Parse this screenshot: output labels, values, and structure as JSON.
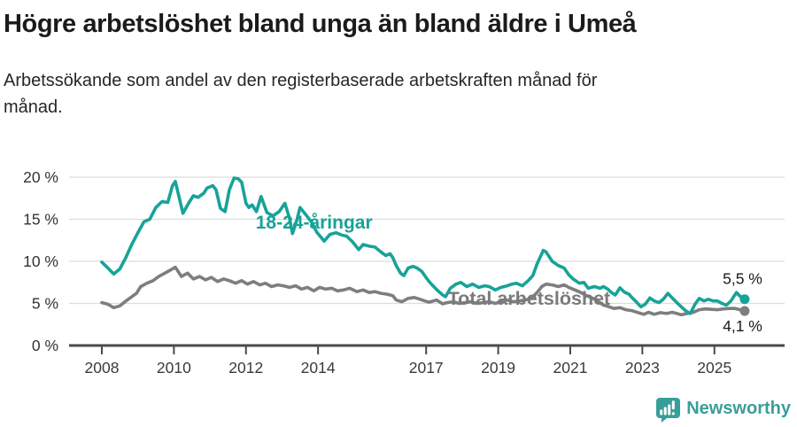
{
  "header": {
    "title": "Högre arbetslöshet bland unga än bland äldre i Umeå",
    "subtitle": "Arbetssökande som andel av den registerbaserade arbetskraften månad för månad."
  },
  "footer": {
    "brand": "Newsworthy"
  },
  "colors": {
    "youth_line": "#17a398",
    "total_line": "#7e7e7e",
    "grid": "#dcdcdc",
    "axis": "#4a4a4a",
    "brand_teal": "#3a9e98"
  },
  "chart_data": {
    "type": "line",
    "title": "Högre arbetslöshet bland unga än bland äldre i Umeå",
    "subtitle": "Arbetssökande som andel av den registerbaserade arbetskraften månad för månad.",
    "x_axis": {
      "unit": "year",
      "range": [
        2008,
        2025.84
      ],
      "ticks": [
        {
          "v": 2008,
          "label": "2008"
        },
        {
          "v": 2010,
          "label": "2010"
        },
        {
          "v": 2012,
          "label": "2012"
        },
        {
          "v": 2014,
          "label": "2014"
        },
        {
          "v": 2017,
          "label": "2017"
        },
        {
          "v": 2019,
          "label": "2019"
        },
        {
          "v": 2021,
          "label": "2021"
        },
        {
          "v": 2023,
          "label": "2023"
        },
        {
          "v": 2025,
          "label": "2025"
        }
      ]
    },
    "y_axis": {
      "unit": "%",
      "range": [
        0,
        21
      ],
      "grid": true,
      "ticks": [
        {
          "v": 20,
          "label": "20 %"
        },
        {
          "v": 15,
          "label": "15 %"
        },
        {
          "v": 10,
          "label": "10 %"
        },
        {
          "v": 5,
          "label": "5 %"
        },
        {
          "v": 0,
          "label": "0 %"
        }
      ]
    },
    "series": [
      {
        "id": "total",
        "name": "Total arbetslöshet",
        "color": "#7e7e7e",
        "end_label": "4,1 %",
        "points": [
          [
            2008.0,
            5.1
          ],
          [
            2008.17,
            4.9
          ],
          [
            2008.33,
            4.5
          ],
          [
            2008.5,
            4.7
          ],
          [
            2008.67,
            5.3
          ],
          [
            2008.83,
            5.8
          ],
          [
            2008.96,
            6.2
          ],
          [
            2009.08,
            7.0
          ],
          [
            2009.25,
            7.4
          ],
          [
            2009.42,
            7.7
          ],
          [
            2009.58,
            8.2
          ],
          [
            2009.75,
            8.6
          ],
          [
            2009.92,
            9.0
          ],
          [
            2010.04,
            9.3
          ],
          [
            2010.21,
            8.2
          ],
          [
            2010.38,
            8.6
          ],
          [
            2010.54,
            7.9
          ],
          [
            2010.71,
            8.2
          ],
          [
            2010.88,
            7.8
          ],
          [
            2011.04,
            8.1
          ],
          [
            2011.21,
            7.6
          ],
          [
            2011.38,
            7.9
          ],
          [
            2011.54,
            7.7
          ],
          [
            2011.71,
            7.4
          ],
          [
            2011.88,
            7.7
          ],
          [
            2012.04,
            7.3
          ],
          [
            2012.21,
            7.6
          ],
          [
            2012.38,
            7.2
          ],
          [
            2012.54,
            7.4
          ],
          [
            2012.71,
            7.0
          ],
          [
            2012.88,
            7.2
          ],
          [
            2013.04,
            7.1
          ],
          [
            2013.21,
            6.9
          ],
          [
            2013.38,
            7.1
          ],
          [
            2013.54,
            6.7
          ],
          [
            2013.71,
            6.9
          ],
          [
            2013.88,
            6.5
          ],
          [
            2014.04,
            6.9
          ],
          [
            2014.21,
            6.7
          ],
          [
            2014.38,
            6.8
          ],
          [
            2014.54,
            6.5
          ],
          [
            2014.71,
            6.6
          ],
          [
            2014.88,
            6.8
          ],
          [
            2015.08,
            6.4
          ],
          [
            2015.25,
            6.6
          ],
          [
            2015.42,
            6.3
          ],
          [
            2015.58,
            6.4
          ],
          [
            2015.75,
            6.2
          ],
          [
            2015.92,
            6.1
          ],
          [
            2016.08,
            5.9
          ],
          [
            2016.17,
            5.4
          ],
          [
            2016.33,
            5.2
          ],
          [
            2016.5,
            5.6
          ],
          [
            2016.67,
            5.7
          ],
          [
            2016.83,
            5.5
          ],
          [
            2016.96,
            5.3
          ],
          [
            2017.08,
            5.15
          ],
          [
            2017.29,
            5.4
          ],
          [
            2017.46,
            4.95
          ],
          [
            2017.58,
            5.1
          ],
          [
            2017.75,
            5.2
          ],
          [
            2017.92,
            5.0
          ],
          [
            2018.08,
            5.1
          ],
          [
            2018.25,
            5.2
          ],
          [
            2018.42,
            5.0
          ],
          [
            2018.58,
            5.1
          ],
          [
            2018.75,
            5.2
          ],
          [
            2018.92,
            5.0
          ],
          [
            2019.08,
            5.2
          ],
          [
            2019.25,
            5.4
          ],
          [
            2019.42,
            5.2
          ],
          [
            2019.58,
            5.3
          ],
          [
            2019.75,
            5.4
          ],
          [
            2019.92,
            5.6
          ],
          [
            2020.08,
            6.3
          ],
          [
            2020.21,
            7.0
          ],
          [
            2020.33,
            7.3
          ],
          [
            2020.5,
            7.2
          ],
          [
            2020.67,
            7.0
          ],
          [
            2020.83,
            7.2
          ],
          [
            2020.96,
            6.9
          ],
          [
            2021.13,
            6.6
          ],
          [
            2021.29,
            6.3
          ],
          [
            2021.46,
            5.9
          ],
          [
            2021.63,
            5.6
          ],
          [
            2021.79,
            5.2
          ],
          [
            2021.92,
            4.8
          ],
          [
            2022.08,
            4.6
          ],
          [
            2022.21,
            4.4
          ],
          [
            2022.38,
            4.5
          ],
          [
            2022.54,
            4.25
          ],
          [
            2022.71,
            4.15
          ],
          [
            2022.88,
            3.9
          ],
          [
            2023.04,
            3.7
          ],
          [
            2023.17,
            3.95
          ],
          [
            2023.33,
            3.7
          ],
          [
            2023.5,
            3.9
          ],
          [
            2023.67,
            3.8
          ],
          [
            2023.83,
            3.95
          ],
          [
            2023.96,
            3.8
          ],
          [
            2024.08,
            3.65
          ],
          [
            2024.25,
            3.8
          ],
          [
            2024.42,
            3.95
          ],
          [
            2024.58,
            4.25
          ],
          [
            2024.75,
            4.35
          ],
          [
            2024.92,
            4.3
          ],
          [
            2025.08,
            4.25
          ],
          [
            2025.25,
            4.35
          ],
          [
            2025.42,
            4.4
          ],
          [
            2025.58,
            4.4
          ],
          [
            2025.71,
            4.25
          ],
          [
            2025.84,
            4.1
          ]
        ]
      },
      {
        "id": "youth",
        "name": "18-24-åringar",
        "color": "#17a398",
        "end_label": "5,5 %",
        "points": [
          [
            2008.0,
            9.9
          ],
          [
            2008.17,
            9.2
          ],
          [
            2008.33,
            8.5
          ],
          [
            2008.5,
            9.1
          ],
          [
            2008.67,
            10.5
          ],
          [
            2008.83,
            12.0
          ],
          [
            2009.0,
            13.4
          ],
          [
            2009.17,
            14.7
          ],
          [
            2009.33,
            15.0
          ],
          [
            2009.5,
            16.4
          ],
          [
            2009.67,
            17.1
          ],
          [
            2009.83,
            17.0
          ],
          [
            2009.96,
            19.0
          ],
          [
            2010.04,
            19.5
          ],
          [
            2010.25,
            15.7
          ],
          [
            2010.42,
            17.0
          ],
          [
            2010.54,
            17.8
          ],
          [
            2010.67,
            17.6
          ],
          [
            2010.83,
            18.1
          ],
          [
            2010.92,
            18.7
          ],
          [
            2011.08,
            19.0
          ],
          [
            2011.17,
            18.5
          ],
          [
            2011.29,
            16.3
          ],
          [
            2011.42,
            15.9
          ],
          [
            2011.54,
            18.5
          ],
          [
            2011.67,
            19.9
          ],
          [
            2011.79,
            19.8
          ],
          [
            2011.88,
            19.4
          ],
          [
            2012.0,
            16.9
          ],
          [
            2012.08,
            16.4
          ],
          [
            2012.17,
            16.7
          ],
          [
            2012.29,
            15.9
          ],
          [
            2012.42,
            17.7
          ],
          [
            2012.58,
            15.8
          ],
          [
            2012.75,
            15.4
          ],
          [
            2012.92,
            15.9
          ],
          [
            2013.08,
            16.9
          ],
          [
            2013.21,
            15.1
          ],
          [
            2013.29,
            13.3
          ],
          [
            2013.42,
            15.0
          ],
          [
            2013.5,
            16.4
          ],
          [
            2013.67,
            15.5
          ],
          [
            2013.83,
            14.6
          ],
          [
            2013.96,
            13.5
          ],
          [
            2014.17,
            12.4
          ],
          [
            2014.33,
            13.2
          ],
          [
            2014.5,
            13.4
          ],
          [
            2014.67,
            13.1
          ],
          [
            2014.79,
            13.0
          ],
          [
            2014.96,
            12.3
          ],
          [
            2015.13,
            11.4
          ],
          [
            2015.25,
            12.0
          ],
          [
            2015.42,
            11.8
          ],
          [
            2015.58,
            11.7
          ],
          [
            2015.75,
            11.1
          ],
          [
            2015.88,
            10.7
          ],
          [
            2016.0,
            10.9
          ],
          [
            2016.08,
            10.4
          ],
          [
            2016.17,
            9.5
          ],
          [
            2016.29,
            8.6
          ],
          [
            2016.38,
            8.3
          ],
          [
            2016.5,
            9.2
          ],
          [
            2016.63,
            9.4
          ],
          [
            2016.75,
            9.2
          ],
          [
            2016.88,
            8.8
          ],
          [
            2016.96,
            8.3
          ],
          [
            2017.08,
            7.6
          ],
          [
            2017.21,
            7.0
          ],
          [
            2017.33,
            6.5
          ],
          [
            2017.46,
            6.0
          ],
          [
            2017.54,
            5.8
          ],
          [
            2017.67,
            6.8
          ],
          [
            2017.83,
            7.3
          ],
          [
            2017.96,
            7.5
          ],
          [
            2018.13,
            7.0
          ],
          [
            2018.29,
            7.3
          ],
          [
            2018.46,
            6.9
          ],
          [
            2018.63,
            7.1
          ],
          [
            2018.75,
            7.0
          ],
          [
            2018.92,
            6.6
          ],
          [
            2019.08,
            6.9
          ],
          [
            2019.25,
            7.1
          ],
          [
            2019.38,
            7.3
          ],
          [
            2019.5,
            7.4
          ],
          [
            2019.67,
            7.1
          ],
          [
            2019.83,
            7.7
          ],
          [
            2019.96,
            8.3
          ],
          [
            2020.08,
            9.7
          ],
          [
            2020.25,
            11.3
          ],
          [
            2020.33,
            11.1
          ],
          [
            2020.5,
            10.0
          ],
          [
            2020.67,
            9.5
          ],
          [
            2020.83,
            9.2
          ],
          [
            2020.96,
            8.4
          ],
          [
            2021.08,
            7.9
          ],
          [
            2021.25,
            7.4
          ],
          [
            2021.38,
            7.5
          ],
          [
            2021.5,
            6.8
          ],
          [
            2021.67,
            7.0
          ],
          [
            2021.83,
            6.8
          ],
          [
            2021.92,
            7.0
          ],
          [
            2022.04,
            6.7
          ],
          [
            2022.13,
            6.35
          ],
          [
            2022.25,
            6.0
          ],
          [
            2022.38,
            6.85
          ],
          [
            2022.5,
            6.35
          ],
          [
            2022.63,
            6.1
          ],
          [
            2022.71,
            5.7
          ],
          [
            2022.83,
            5.2
          ],
          [
            2022.96,
            4.6
          ],
          [
            2023.08,
            4.9
          ],
          [
            2023.21,
            5.65
          ],
          [
            2023.33,
            5.3
          ],
          [
            2023.46,
            5.1
          ],
          [
            2023.58,
            5.5
          ],
          [
            2023.71,
            6.2
          ],
          [
            2023.83,
            5.65
          ],
          [
            2023.96,
            5.1
          ],
          [
            2024.08,
            4.6
          ],
          [
            2024.21,
            4.1
          ],
          [
            2024.33,
            3.8
          ],
          [
            2024.46,
            4.9
          ],
          [
            2024.58,
            5.6
          ],
          [
            2024.71,
            5.3
          ],
          [
            2024.83,
            5.5
          ],
          [
            2024.96,
            5.3
          ],
          [
            2025.08,
            5.3
          ],
          [
            2025.21,
            5.0
          ],
          [
            2025.33,
            4.8
          ],
          [
            2025.46,
            5.3
          ],
          [
            2025.61,
            6.3
          ],
          [
            2025.75,
            5.7
          ],
          [
            2025.84,
            5.5
          ]
        ]
      }
    ],
    "annotations": [
      {
        "name": "series-label-youth",
        "text": "18-24-åringar",
        "t": 2012.27,
        "v": 13.9,
        "anchor": "start",
        "style": "series-youth",
        "color": "#17a398"
      },
      {
        "name": "series-label-total",
        "text": "Total arbetslöshet",
        "t": 2017.6,
        "v": 4.85,
        "anchor": "start",
        "style": "series-total",
        "color": "#7a7a7a"
      },
      {
        "name": "end-value-label-youth",
        "text": "5,5 %",
        "t": 2026.33,
        "v": 7.3,
        "anchor": "end",
        "style": "value",
        "color": "#1a1a1a"
      },
      {
        "name": "end-value-label-total",
        "text": "4,1 %",
        "t": 2026.33,
        "v": 1.7,
        "anchor": "end",
        "style": "value",
        "color": "#1a1a1a"
      }
    ],
    "legend_position": "inline-labels"
  }
}
